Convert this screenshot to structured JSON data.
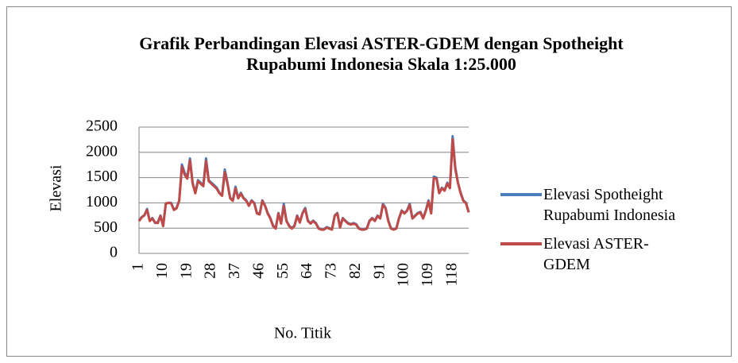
{
  "chart_data": {
    "type": "line",
    "title": "Grafik Perbandingan Elevasi ASTER-GDEM dengan Spotheight\nRupabumi Indonesia Skala 1:25.000",
    "x_label": "No. Titik",
    "y_label": "Elevasi",
    "x": [
      1,
      2,
      3,
      4,
      5,
      6,
      7,
      8,
      9,
      10,
      11,
      12,
      13,
      14,
      15,
      16,
      17,
      18,
      19,
      20,
      21,
      22,
      23,
      24,
      25,
      26,
      27,
      28,
      29,
      30,
      31,
      32,
      33,
      34,
      35,
      36,
      37,
      38,
      39,
      40,
      41,
      42,
      43,
      44,
      45,
      46,
      47,
      48,
      49,
      50,
      51,
      52,
      53,
      54,
      55,
      56,
      57,
      58,
      59,
      60,
      61,
      62,
      63,
      64,
      65,
      66,
      67,
      68,
      69,
      70,
      71,
      72,
      73,
      74,
      75,
      76,
      77,
      78,
      79,
      80,
      81,
      82,
      83,
      84,
      85,
      86,
      87,
      88,
      89,
      90,
      91,
      92,
      93,
      94,
      95,
      96,
      97,
      98,
      99,
      100,
      101,
      102,
      103,
      104,
      105,
      106,
      107,
      108,
      109,
      110,
      111,
      112,
      113,
      114,
      115,
      116,
      117,
      118,
      119,
      120,
      121,
      122,
      123,
      124
    ],
    "xlim": [
      1,
      124
    ],
    "xticks": [
      1,
      10,
      19,
      28,
      37,
      46,
      55,
      64,
      73,
      82,
      91,
      100,
      109,
      118
    ],
    "ylim": [
      0,
      2500
    ],
    "yticks": [
      0,
      500,
      1000,
      1500,
      2000,
      2500
    ],
    "grid": true,
    "series": [
      {
        "name": "Elevasi Spotheight Rupabumi Indonesia",
        "color": "#4a7ebb",
        "values": [
          650,
          720,
          750,
          880,
          650,
          700,
          600,
          620,
          750,
          550,
          980,
          1000,
          1000,
          870,
          900,
          1050,
          1760,
          1600,
          1500,
          1880,
          1400,
          1200,
          1450,
          1400,
          1350,
          1880,
          1450,
          1400,
          1350,
          1300,
          1200,
          1150,
          1660,
          1400,
          1100,
          1050,
          1320,
          1100,
          1200,
          1100,
          1050,
          950,
          1050,
          1000,
          800,
          780,
          1050,
          950,
          800,
          700,
          550,
          500,
          800,
          600,
          980,
          650,
          550,
          500,
          550,
          750,
          620,
          800,
          900,
          650,
          600,
          650,
          600,
          500,
          480,
          480,
          520,
          500,
          480,
          750,
          800,
          520,
          700,
          650,
          600,
          580,
          600,
          580,
          500,
          480,
          480,
          500,
          650,
          700,
          650,
          750,
          700,
          980,
          900,
          650,
          500,
          480,
          500,
          700,
          850,
          800,
          850,
          980,
          700,
          750,
          800,
          820,
          700,
          850,
          1050,
          800,
          1520,
          1500,
          1200,
          1300,
          1250,
          1400,
          1300,
          2320,
          1700,
          1400,
          1200,
          1050,
          1000,
          820
        ]
      },
      {
        "name": "Elevasi ASTER-GDEM",
        "color": "#be4b48",
        "values": [
          640,
          710,
          760,
          860,
          640,
          690,
          610,
          600,
          740,
          540,
          990,
          1000,
          990,
          860,
          890,
          1040,
          1720,
          1560,
          1480,
          1840,
          1380,
          1190,
          1430,
          1380,
          1330,
          1830,
          1430,
          1380,
          1330,
          1280,
          1190,
          1140,
          1610,
          1380,
          1090,
          1040,
          1290,
          1090,
          1180,
          1090,
          1040,
          940,
          1040,
          990,
          790,
          770,
          1040,
          940,
          790,
          690,
          540,
          490,
          790,
          590,
          940,
          640,
          540,
          490,
          540,
          740,
          610,
          790,
          880,
          640,
          590,
          640,
          590,
          490,
          470,
          470,
          510,
          490,
          470,
          740,
          790,
          510,
          690,
          640,
          590,
          570,
          590,
          570,
          490,
          470,
          470,
          490,
          640,
          690,
          640,
          740,
          690,
          960,
          890,
          640,
          490,
          470,
          490,
          690,
          840,
          790,
          840,
          960,
          690,
          740,
          790,
          810,
          690,
          840,
          1030,
          790,
          1490,
          1480,
          1190,
          1290,
          1240,
          1380,
          1290,
          2260,
          1670,
          1390,
          1190,
          1040,
          990,
          810
        ]
      }
    ]
  }
}
